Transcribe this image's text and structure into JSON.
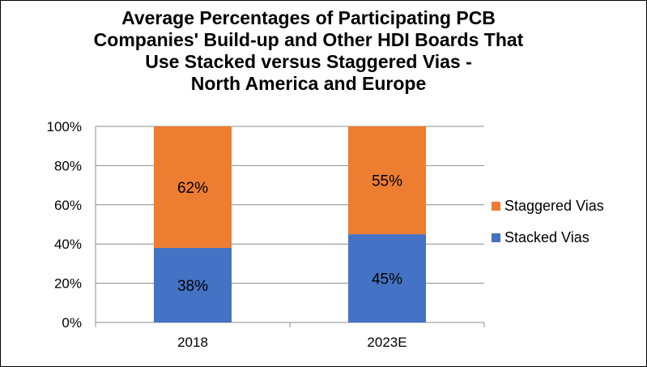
{
  "chart_data": {
    "type": "bar",
    "stacked": true,
    "percent_stacked": true,
    "title_lines": [
      "Average Percentages of Participating PCB",
      "Companies' Build-up and Other HDI Boards That",
      "Use Stacked versus Staggered Vias -",
      "North America and Europe"
    ],
    "categories": [
      "2018",
      "2023E"
    ],
    "series": [
      {
        "name": "Stacked Vias",
        "values": [
          38,
          45
        ],
        "labels": [
          "38%",
          "45%"
        ],
        "color": "#4472C4"
      },
      {
        "name": "Staggered Vias",
        "values": [
          62,
          55
        ],
        "labels": [
          "62%",
          "55%"
        ],
        "color": "#ED7D31"
      }
    ],
    "ylim": [
      0,
      100
    ],
    "yticks": [
      0,
      20,
      40,
      60,
      80,
      100
    ],
    "ytick_labels": [
      "0%",
      "20%",
      "40%",
      "60%",
      "80%",
      "100%"
    ],
    "grid": true,
    "legend": {
      "position": "right",
      "entries": [
        "Staggered Vias",
        "Stacked Vias"
      ]
    }
  }
}
